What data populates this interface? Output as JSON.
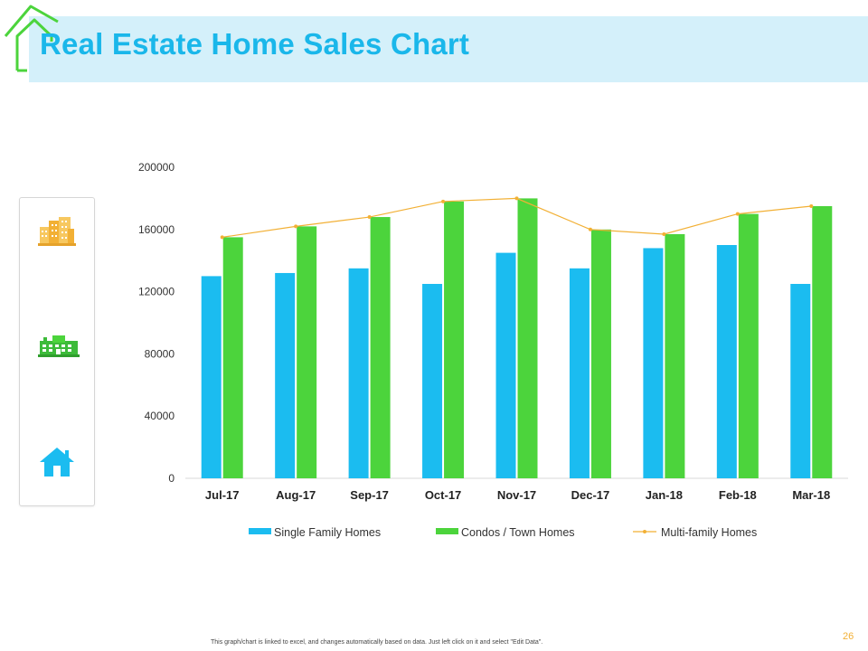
{
  "slide": {
    "title": "Real Estate Home Sales Chart",
    "footnote": "This graph/chart is linked to excel, and changes automatically based on data. Just left click on it and select \"Edit Data\".",
    "page_number": "26"
  },
  "colors": {
    "title": "#1ab7ea",
    "title_band": "#d4f0fa",
    "single_family": "#1bbcf0",
    "condos": "#4cd43c",
    "multi_family": "#f2b035"
  },
  "icons": [
    "apartment-buildings-icon",
    "factory-building-icon",
    "house-icon"
  ],
  "chart_data": {
    "type": "bar",
    "categories": [
      "Jul-17",
      "Aug-17",
      "Sep-17",
      "Oct-17",
      "Nov-17",
      "Dec-17",
      "Jan-18",
      "Feb-18",
      "Mar-18"
    ],
    "series": [
      {
        "name": "Single Family Homes",
        "type": "bar",
        "color": "#1bbcf0",
        "values": [
          130000,
          132000,
          135000,
          125000,
          145000,
          135000,
          148000,
          150000,
          125000
        ]
      },
      {
        "name": "Condos / Town Homes",
        "type": "bar",
        "color": "#4cd43c",
        "values": [
          155000,
          162000,
          168000,
          178000,
          180000,
          160000,
          157000,
          170000,
          175000
        ]
      },
      {
        "name": "Multi-family Homes",
        "type": "line",
        "color": "#f2b035",
        "values": [
          155000,
          162000,
          168000,
          178000,
          180000,
          160000,
          157000,
          170000,
          175000
        ]
      }
    ],
    "yticks": [
      "0",
      "40000",
      "80000",
      "120000",
      "160000",
      "200000"
    ],
    "ylim": [
      0,
      200000
    ],
    "grid": false,
    "legend": "bottom"
  }
}
